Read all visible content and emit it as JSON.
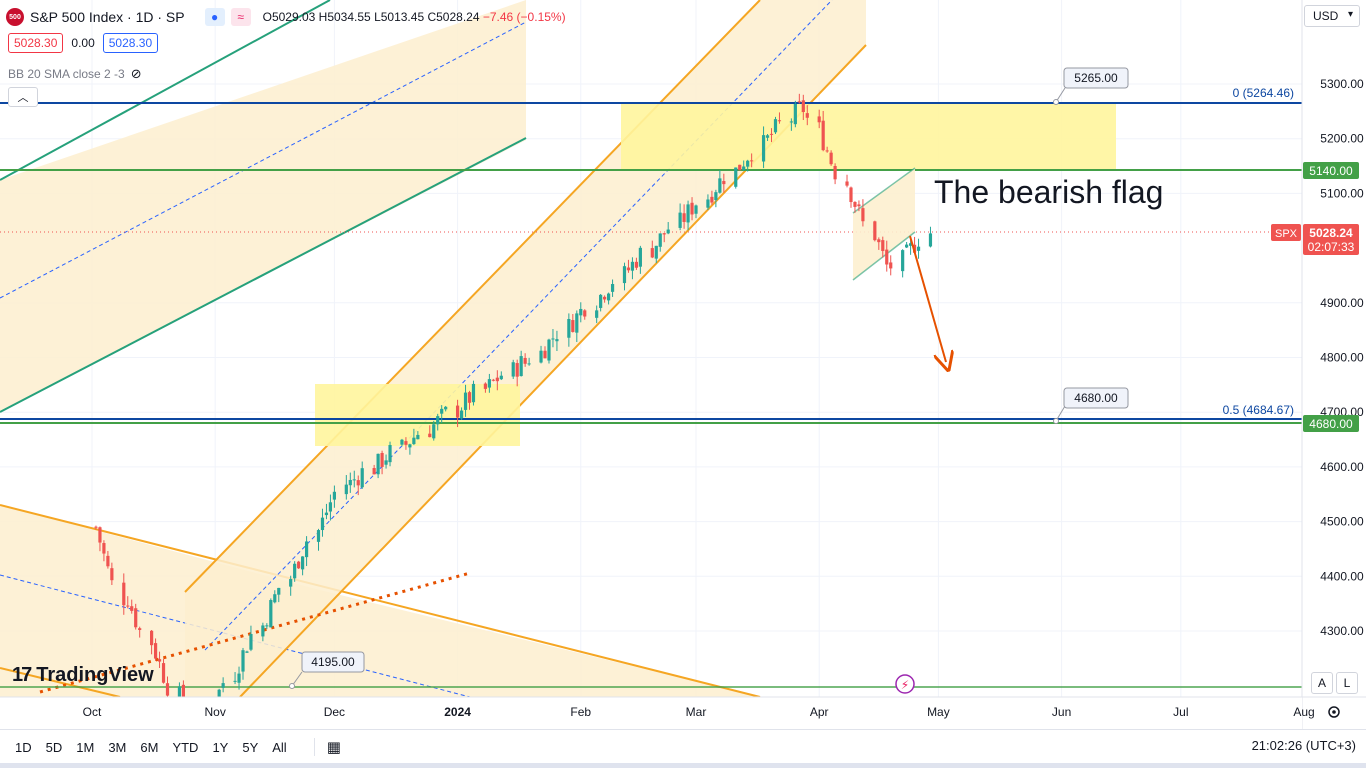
{
  "header": {
    "symbol_logo": "500",
    "title": "S&P 500 Index · 1D · SP",
    "ohlc": {
      "open": "O5029.03",
      "high": "H5034.55",
      "low": "L5013.45",
      "close": "C5028.24",
      "change": "−7.46 (−0.15%)"
    },
    "sell_price": "5028.30",
    "spread": "0.00",
    "buy_price": "5028.30",
    "indicator_label": "BB 20 SMA close 2 -3",
    "currency": "USD"
  },
  "annotations": {
    "flag_text": "The bearish flag",
    "callout_upper": "5265.00",
    "callout_mid": "4680.00",
    "callout_lower": "4195.00",
    "fib_0": "0 (5264.46)",
    "fib_05": "0.5 (4684.67)"
  },
  "price_scale": {
    "ticks": [
      "5300.00",
      "5200.00",
      "5100.00",
      "4900.00",
      "4800.00",
      "4700.00",
      "4600.00",
      "4500.00",
      "4400.00",
      "4300.00"
    ],
    "label_5140": "5140.00",
    "label_4680": "4680.00",
    "spx_tag": "SPX",
    "last_price": "5028.24",
    "countdown": "02:07:33",
    "btn_auto": "A",
    "btn_log": "L"
  },
  "time_axis": {
    "labels": [
      "Oct",
      "Nov",
      "Dec",
      "2024",
      "Feb",
      "Mar",
      "Apr",
      "May",
      "Jun",
      "Jul",
      "Aug"
    ]
  },
  "branding": {
    "logo_text": "TradingView"
  },
  "bottom_bar": {
    "ranges": [
      "1D",
      "5D",
      "1M",
      "3M",
      "6M",
      "YTD",
      "1Y",
      "5Y",
      "All"
    ],
    "clock": "21:02:26 (UTC+3)"
  },
  "colors": {
    "up": "#26a69a",
    "down": "#ef5350",
    "channel_orange": "#f5a623",
    "channel_fill": "#fdefcf",
    "zone_yellow": "#fff59d",
    "green_line": "#43a047",
    "blue_line": "#0d47a1",
    "arrow": "#e65100"
  },
  "chart_data": {
    "type": "candlestick",
    "instrument": "S&P 500 Index",
    "interval": "1D",
    "ylim": [
      4195,
      5320
    ],
    "x_ticks": [
      "Oct",
      "Nov",
      "Dec",
      "2024",
      "Feb",
      "Mar",
      "Apr",
      "May",
      "Jun",
      "Jul",
      "Aug"
    ],
    "last_close": 5028.24,
    "horizontal_levels": [
      5264.46,
      5140.0,
      4684.67,
      4680.0,
      4195.0
    ],
    "trend_phases": [
      {
        "from": "2023-10-01",
        "to": "2023-10-10",
        "open": 4490,
        "close": 4360
      },
      {
        "from": "2023-10-10",
        "to": "2023-10-27",
        "open": 4360,
        "close": 4120
      },
      {
        "from": "2023-10-27",
        "to": "2023-12-05",
        "open": 4120,
        "close": 4570
      },
      {
        "from": "2023-12-05",
        "to": "2024-01-18",
        "open": 4570,
        "close": 4790
      },
      {
        "from": "2024-01-18",
        "to": "2024-03-28",
        "open": 4790,
        "close": 5255
      },
      {
        "from": "2024-03-28",
        "to": "2024-04-19",
        "open": 5255,
        "close": 4967
      },
      {
        "from": "2024-04-19",
        "to": "2024-04-30",
        "open": 4967,
        "close": 5028
      }
    ]
  }
}
